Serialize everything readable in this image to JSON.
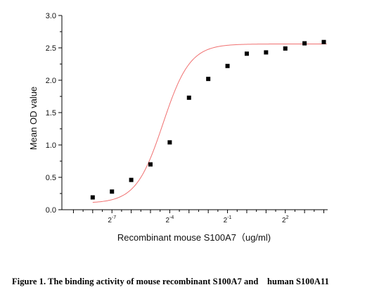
{
  "chart_data": {
    "type": "scatter",
    "xlabel": "Recombinant mouse S100A7（ug/ml)",
    "ylabel": "Mean OD value",
    "x_scale": "log2",
    "xlim": [
      -9.6,
      4.2
    ],
    "ylim": [
      0.0,
      3.0
    ],
    "yticks": [
      "0.0",
      "0.5",
      "1.0",
      "1.5",
      "2.0",
      "2.5",
      "3.0"
    ],
    "xticks": [
      {
        "base": "2",
        "exp": "-7",
        "log2": -7
      },
      {
        "base": "2",
        "exp": "-4",
        "log2": -4
      },
      {
        "base": "2",
        "exp": "-1",
        "log2": -1
      },
      {
        "base": "2",
        "exp": "2",
        "log2": 2
      }
    ],
    "series": [
      {
        "marker": "square",
        "color": "#000000",
        "log2_x": [
          -8,
          -7,
          -6,
          -5,
          -4,
          -3,
          -2,
          -1,
          0,
          1,
          2,
          3,
          4
        ],
        "y": [
          0.19,
          0.28,
          0.46,
          0.7,
          1.04,
          1.73,
          2.02,
          2.22,
          2.41,
          2.43,
          2.49,
          2.57,
          2.59
        ]
      },
      {
        "type": "line",
        "name": "",
        "color": "#f07070",
        "fit": "four-parameter logistic",
        "params": {
          "bottom": 0.1,
          "top": 2.56,
          "log_ec50": -4.35,
          "hill_slope": 0.62
        }
      }
    ],
    "grid": false,
    "legend": "none"
  },
  "caption": "Figure 1. The binding activity of mouse recombinant S100A7 and    human S100A11"
}
